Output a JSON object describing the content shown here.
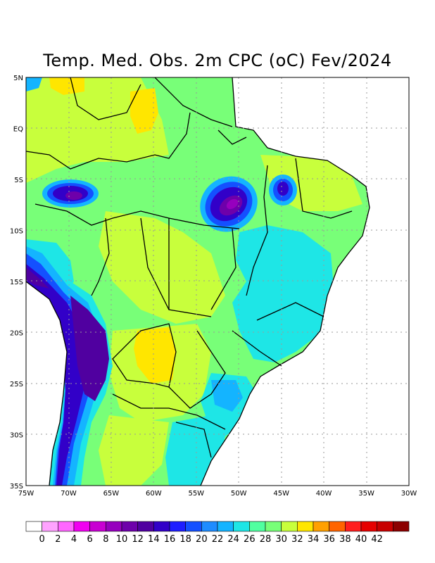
{
  "title": "Temp. Med. Obs. 2m CPC (oC) Fev/2024",
  "lon_labels": [
    "75W",
    "70W",
    "65W",
    "60W",
    "55W",
    "50W",
    "45W",
    "40W",
    "35W",
    "30W"
  ],
  "lat_labels": [
    "5N",
    "EQ",
    "5S",
    "10S",
    "15S",
    "20S",
    "25S",
    "30S",
    "35S"
  ],
  "colorbar": {
    "labels": [
      "0",
      "2",
      "4",
      "6",
      "8",
      "10",
      "12",
      "14",
      "16",
      "18",
      "20",
      "22",
      "24",
      "26",
      "28",
      "30",
      "32",
      "34",
      "36",
      "38",
      "40",
      "42"
    ],
    "colors": [
      "#ffffff",
      "#ffa3ff",
      "#ff66ff",
      "#f000f0",
      "#c800d2",
      "#9600be",
      "#6e00aa",
      "#5000a0",
      "#3200c8",
      "#1e1eff",
      "#1450ff",
      "#1e8cff",
      "#14b4ff",
      "#1ee6e6",
      "#50ffa0",
      "#78ff78",
      "#c8ff3c",
      "#ffe600",
      "#ffa000",
      "#ff6400",
      "#ff1e1e",
      "#e60000",
      "#c80000",
      "#8c0000"
    ]
  },
  "palette": {
    "t18": "#1e1eff",
    "t20": "#1450ff",
    "t22": "#1e8cff",
    "t24": "#14b4ff",
    "t26": "#1ee6e6",
    "t28": "#50ffa0",
    "t30": "#78ff78",
    "t32": "#c8ff3c",
    "t34": "#ffe600",
    "t10": "#9600be",
    "t12": "#6e00aa",
    "t14": "#5000a0",
    "t16": "#3200c8"
  }
}
